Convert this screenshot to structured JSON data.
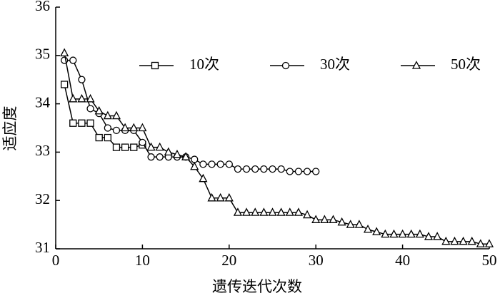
{
  "chart_data": {
    "type": "line",
    "x_label": "遗传迭代次数",
    "y_label": "适应度",
    "xlim": [
      0,
      50
    ],
    "ylim": [
      31,
      36
    ],
    "xticks": [
      0,
      10,
      20,
      30,
      40,
      50
    ],
    "yticks": [
      31,
      32,
      33,
      34,
      35,
      36
    ],
    "grid": false,
    "legend": "top",
    "series": [
      {
        "name": "10次",
        "color": "#000000",
        "marker": "square",
        "x": [
          1,
          2,
          3,
          4,
          5,
          6,
          7,
          8,
          9,
          10
        ],
        "values": [
          34.4,
          33.6,
          33.6,
          33.6,
          33.3,
          33.3,
          33.1,
          33.1,
          33.1,
          33.15
        ]
      },
      {
        "name": "30次",
        "color": "#000000",
        "marker": "circle",
        "x": [
          1,
          2,
          3,
          4,
          5,
          6,
          7,
          8,
          9,
          10,
          11,
          12,
          13,
          14,
          15,
          16,
          17,
          18,
          19,
          20,
          21,
          22,
          23,
          24,
          25,
          26,
          27,
          28,
          29,
          30
        ],
        "values": [
          34.9,
          34.9,
          34.5,
          33.9,
          33.8,
          33.5,
          33.45,
          33.45,
          33.45,
          33.2,
          32.9,
          32.9,
          32.9,
          32.9,
          32.9,
          32.85,
          32.75,
          32.75,
          32.75,
          32.75,
          32.65,
          32.65,
          32.65,
          32.65,
          32.65,
          32.65,
          32.6,
          32.6,
          32.6,
          32.6
        ]
      },
      {
        "name": "50次",
        "color": "#000000",
        "marker": "triangle",
        "x": [
          1,
          2,
          3,
          4,
          5,
          6,
          7,
          8,
          9,
          10,
          11,
          12,
          13,
          14,
          15,
          16,
          17,
          18,
          19,
          20,
          21,
          22,
          23,
          24,
          25,
          26,
          27,
          28,
          29,
          30,
          31,
          32,
          33,
          34,
          35,
          36,
          37,
          38,
          39,
          40,
          41,
          42,
          43,
          44,
          45,
          46,
          47,
          48,
          49,
          50
        ],
        "values": [
          35.05,
          34.1,
          34.1,
          34.1,
          33.85,
          33.75,
          33.75,
          33.5,
          33.5,
          33.5,
          33.1,
          33.1,
          33.0,
          32.95,
          32.9,
          32.7,
          32.45,
          32.05,
          32.05,
          32.05,
          31.75,
          31.75,
          31.75,
          31.75,
          31.75,
          31.75,
          31.75,
          31.75,
          31.7,
          31.6,
          31.6,
          31.6,
          31.55,
          31.5,
          31.5,
          31.4,
          31.35,
          31.3,
          31.3,
          31.3,
          31.3,
          31.3,
          31.25,
          31.25,
          31.15,
          31.15,
          31.15,
          31.15,
          31.1,
          31.1
        ]
      }
    ]
  }
}
